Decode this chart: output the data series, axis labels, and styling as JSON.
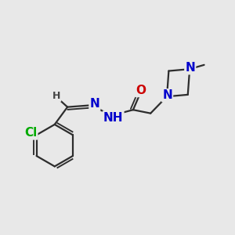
{
  "background_color": "#e8e8e8",
  "bond_color": "#2d2d2d",
  "bond_width": 1.6,
  "atom_colors": {
    "C": "#2d2d2d",
    "N": "#0000cc",
    "O": "#cc0000",
    "Cl": "#00aa00",
    "H": "#444444"
  },
  "figsize": [
    3.0,
    3.0
  ],
  "dpi": 100
}
